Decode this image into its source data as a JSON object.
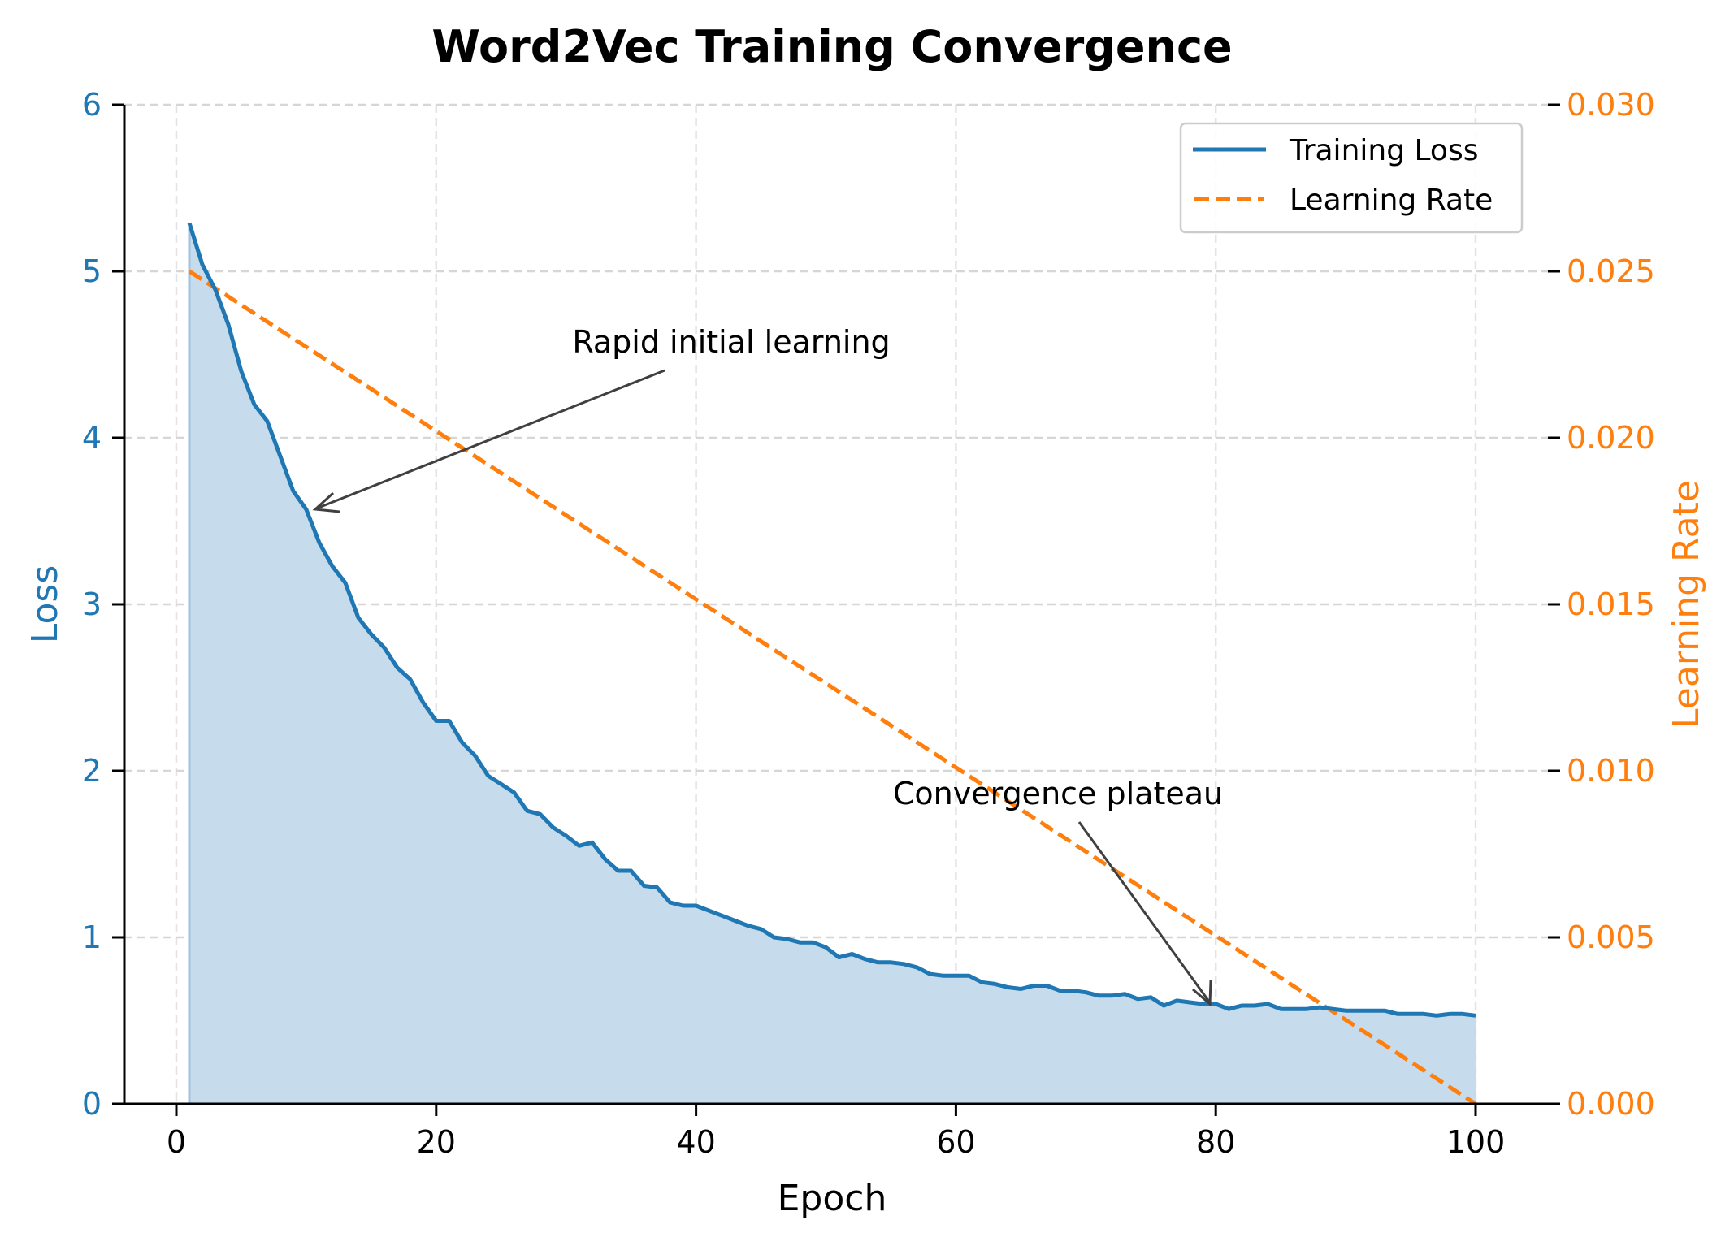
{
  "chart_data": {
    "type": "line",
    "title": "Word2Vec Training Convergence",
    "xlabel": "Epoch",
    "ylabel": "Loss",
    "ylabel_right": "Learning Rate",
    "xlim": [
      -4,
      105
    ],
    "ylim": [
      0,
      6
    ],
    "ylim_right": [
      0.0,
      0.03
    ],
    "x_ticks": [
      "0",
      "20",
      "40",
      "60",
      "80",
      "100"
    ],
    "y_ticks": [
      "0",
      "1",
      "2",
      "3",
      "4",
      "5",
      "6"
    ],
    "y_ticks_right": [
      "0.000",
      "0.005",
      "0.010",
      "0.015",
      "0.020",
      "0.025",
      "0.030"
    ],
    "grid": true,
    "legend_position": "upper right",
    "legend": [
      "Training Loss",
      "Learning Rate"
    ],
    "colors": {
      "loss": "#1f77b4",
      "lr": "#ff7f0e",
      "fill": "#c6dbeb",
      "annotation": "#404040"
    },
    "x": [
      1,
      2,
      3,
      4,
      5,
      6,
      7,
      8,
      9,
      10,
      11,
      12,
      13,
      14,
      15,
      16,
      17,
      18,
      19,
      20,
      21,
      22,
      23,
      24,
      25,
      26,
      27,
      28,
      29,
      30,
      31,
      32,
      33,
      34,
      35,
      36,
      37,
      38,
      39,
      40,
      41,
      42,
      43,
      44,
      45,
      46,
      47,
      48,
      49,
      50,
      51,
      52,
      53,
      54,
      55,
      56,
      57,
      58,
      59,
      60,
      61,
      62,
      63,
      64,
      65,
      66,
      67,
      68,
      69,
      70,
      71,
      72,
      73,
      74,
      75,
      76,
      77,
      78,
      79,
      80,
      81,
      82,
      83,
      84,
      85,
      86,
      87,
      88,
      89,
      90,
      91,
      92,
      93,
      94,
      95,
      96,
      97,
      98,
      99,
      100
    ],
    "series": [
      {
        "name": "Training Loss",
        "axis": "left",
        "style": "solid",
        "fill_to_zero": true,
        "values": [
          5.29,
          5.04,
          4.89,
          4.68,
          4.4,
          4.2,
          4.1,
          3.89,
          3.68,
          3.57,
          3.37,
          3.23,
          3.13,
          2.92,
          2.82,
          2.74,
          2.62,
          2.55,
          2.41,
          2.3,
          2.3,
          2.17,
          2.09,
          1.97,
          1.92,
          1.87,
          1.76,
          1.74,
          1.66,
          1.61,
          1.55,
          1.57,
          1.47,
          1.4,
          1.4,
          1.31,
          1.3,
          1.21,
          1.19,
          1.19,
          1.16,
          1.13,
          1.1,
          1.07,
          1.05,
          1.0,
          0.99,
          0.97,
          0.97,
          0.94,
          0.88,
          0.9,
          0.87,
          0.85,
          0.85,
          0.84,
          0.82,
          0.78,
          0.77,
          0.77,
          0.77,
          0.73,
          0.72,
          0.7,
          0.69,
          0.71,
          0.71,
          0.68,
          0.68,
          0.67,
          0.65,
          0.65,
          0.66,
          0.63,
          0.64,
          0.59,
          0.62,
          0.61,
          0.6,
          0.6,
          0.57,
          0.59,
          0.59,
          0.6,
          0.57,
          0.57,
          0.57,
          0.58,
          0.57,
          0.56,
          0.56,
          0.56,
          0.56,
          0.54,
          0.54,
          0.54,
          0.53,
          0.54,
          0.54,
          0.53
        ]
      },
      {
        "name": "Learning Rate",
        "axis": "right",
        "style": "dashed",
        "start": 0.025,
        "end": 0.0,
        "values": "linear 0.025 at epoch 1 to 0.000 at epoch 100"
      }
    ],
    "annotations": [
      {
        "text": "Rapid initial learning",
        "text_xy": [
          30,
          4.5
        ],
        "arrow_to": [
          10,
          3.57
        ]
      },
      {
        "text": "Convergence plateau",
        "text_xy": [
          55,
          1.8
        ],
        "arrow_to": [
          80,
          0.6
        ]
      }
    ]
  }
}
